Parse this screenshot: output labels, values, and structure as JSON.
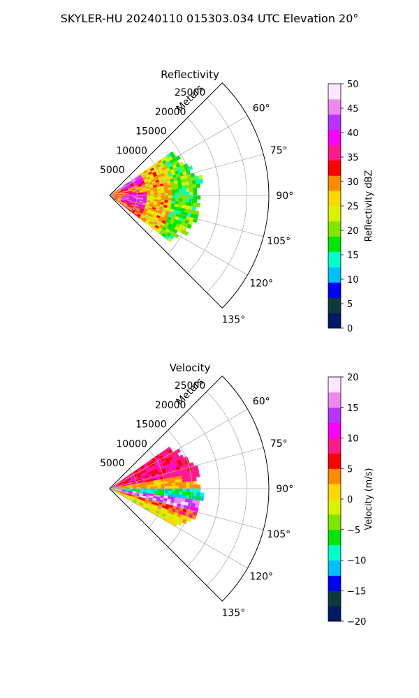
{
  "title": "SKYLER-HU  20240110  015303.034 UTC Elevation 20°",
  "chart_data": [
    {
      "type": "heatmap",
      "subtype": "polar-sector-ppi",
      "title": "Reflectivity",
      "radial_label": "Meters",
      "radial_ticks": [
        5000,
        10000,
        15000,
        20000,
        25000
      ],
      "radial_tick_labels": [
        "5000",
        "10000",
        "15000",
        "20000",
        "25000"
      ],
      "rlim": [
        0,
        29000
      ],
      "angle_range_deg": [
        45,
        135
      ],
      "angle_ticks": [
        60,
        75,
        90,
        105,
        120,
        135
      ],
      "angle_tick_labels": [
        "60°",
        "75°",
        "90°",
        "105°",
        "120°",
        "135°"
      ],
      "grid": true,
      "data_extent": {
        "azimuth_deg": [
          55,
          127
        ],
        "max_range_m": 16500
      },
      "data_description": "Strong echo band (35–45 dBZ) near 2000–6000 m, 20–30 dBZ in middle ranges, 15–20 dBZ toward outer edge",
      "colorbar": {
        "label": "Reflectivity dBZ",
        "vmin": 0,
        "vmax": 50,
        "ticks": [
          0,
          5,
          10,
          15,
          20,
          25,
          30,
          35,
          40,
          45,
          50
        ],
        "tick_labels": [
          "0",
          "5",
          "10",
          "15",
          "20",
          "25",
          "30",
          "35",
          "40",
          "45",
          "50"
        ],
        "colors": [
          "#001a66",
          "#0d3b3b",
          "#0000ff",
          "#00bfff",
          "#00ffcc",
          "#00e600",
          "#7fe600",
          "#d9f200",
          "#ffd700",
          "#ff8c00",
          "#ff0000",
          "#ff1a8c",
          "#ff00ff",
          "#b833ff",
          "#ee88ee",
          "#ffe6ff"
        ]
      }
    },
    {
      "type": "heatmap",
      "subtype": "polar-sector-ppi",
      "title": "Velocity",
      "radial_label": "Meters",
      "radial_ticks": [
        5000,
        10000,
        15000,
        20000,
        25000
      ],
      "radial_tick_labels": [
        "5000",
        "10000",
        "15000",
        "20000",
        "25000"
      ],
      "rlim": [
        0,
        29000
      ],
      "angle_range_deg": [
        45,
        135
      ],
      "angle_ticks": [
        60,
        75,
        90,
        105,
        120,
        135
      ],
      "angle_tick_labels": [
        "60°",
        "75°",
        "90°",
        "105°",
        "120°",
        "135°"
      ],
      "grid": true,
      "data_extent": {
        "azimuth_deg": [
          55,
          120
        ],
        "max_range_m": 16500
      },
      "data_description": "Positive (5–10 m/s) velocities at low azimuths, near-zero yellow/green across center, negative (-10 to -15 m/s) cyan band near 90–100°, magenta/red (10–20 m/s) streak near 100–108°",
      "colorbar": {
        "label": "Velocity (m/s)",
        "vmin": -20,
        "vmax": 20,
        "ticks": [
          -20,
          -15,
          -10,
          -5,
          0,
          5,
          10,
          15,
          20
        ],
        "tick_labels": [
          "−20",
          "−15",
          "−10",
          "−5",
          "0",
          "5",
          "10",
          "15",
          "20"
        ],
        "colors": [
          "#001a66",
          "#0d3b3b",
          "#0000ff",
          "#00bfff",
          "#00ffcc",
          "#00e600",
          "#7fe600",
          "#d9f200",
          "#ffd700",
          "#ff8c00",
          "#ff0000",
          "#ff1a8c",
          "#ff00ff",
          "#b833ff",
          "#ee88ee",
          "#ffe6ff"
        ]
      }
    }
  ]
}
